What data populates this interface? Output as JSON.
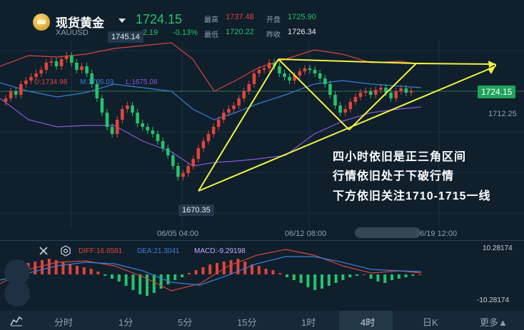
{
  "instrument": {
    "name": "现货黄金",
    "symbol": "XAUUSD",
    "price": "1724.15",
    "change": "-2.19",
    "change_pct": "-0.13%"
  },
  "stats": {
    "high_label": "最高",
    "high": "1737.48",
    "open_label": "开盘",
    "open": "1725.90",
    "low_label": "最低",
    "low": "1720.22",
    "prev_close_label": "昨收",
    "prev_close": "1726.34"
  },
  "indicator_labels": {
    "upper": "U:1734.98",
    "mid": "M:1705.03",
    "lower": "L:1675.08"
  },
  "price_tags": {
    "current": "1724.15",
    "high_marker": "1745.14",
    "low_marker": "1670.35",
    "axis_level": "1712.25"
  },
  "time_labels": [
    "06/05 04:00",
    "06/12 08:00",
    "06/19 12:00"
  ],
  "annotation_lines": [
    "四小时依旧是正三角区间",
    "行情依旧处于下破行情",
    "下方依旧关注1710-1715一线"
  ],
  "macd": {
    "diff": "DIFF:16.6581",
    "dea": "DEA:21.3041",
    "macd": "MACD:-9.29198",
    "axis_top": "10.28174",
    "axis_bottom": "-10.28174"
  },
  "timeframe_tabs": [
    "分时",
    "1分",
    "5分",
    "15分",
    "1时",
    "4时",
    "日K",
    "更多▲"
  ],
  "active_tab": "4时",
  "colors": {
    "up": "#e0443a",
    "down": "#25c26b",
    "bg": "#0f1f2c",
    "triangle": "#f3f341",
    "boll_upper": "#d7463e",
    "boll_mid": "#3b7fd8",
    "boll_lower": "#8a5ad6"
  }
}
